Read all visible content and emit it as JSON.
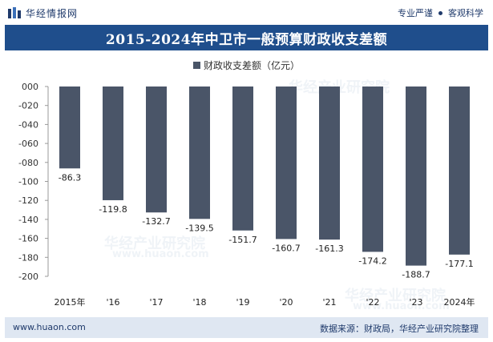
{
  "header": {
    "brand_name": "华经情报网",
    "tagline_left": "专业严谨",
    "tagline_right": "客观科学"
  },
  "footer": {
    "website": "www.huaon.com",
    "source": "数据来源：财政局，华经产业研究院整理"
  },
  "watermark": {
    "text": "华经产业研究院",
    "url_text": "www.huaon.com"
  },
  "colors": {
    "title_bg": "#1f4e8c",
    "bar": "#4a5568",
    "footer_bg": "#dfe7f2"
  },
  "chart_data": {
    "type": "bar",
    "title": "2015-2024年中卫市一般预算财政收支差额",
    "legend": [
      "财政收支差额（亿元）"
    ],
    "legend_position": "top-center",
    "categories": [
      "2015年",
      "'16",
      "'17",
      "'18",
      "'19",
      "'20",
      "'21",
      "'22",
      "'23",
      "2024年"
    ],
    "series": [
      {
        "name": "财政收支差额（亿元）",
        "values": [
          -86.3,
          -119.8,
          -132.7,
          -139.5,
          -151.7,
          -160.7,
          -161.3,
          -174.2,
          -188.7,
          -177.1
        ]
      }
    ],
    "value_labels": [
      "-86.3",
      "-119.8",
      "-132.7",
      "-139.5",
      "-151.7",
      "-160.7",
      "-161.3",
      "-174.2",
      "-188.7",
      "-177.1"
    ],
    "y_ticks": [
      "000",
      "-020",
      "-040",
      "-060",
      "-080",
      "-100",
      "-120",
      "-140",
      "-160",
      "-180",
      "-200"
    ],
    "ylim": [
      -200,
      0
    ],
    "grid": false,
    "xlabel": "",
    "ylabel": ""
  }
}
